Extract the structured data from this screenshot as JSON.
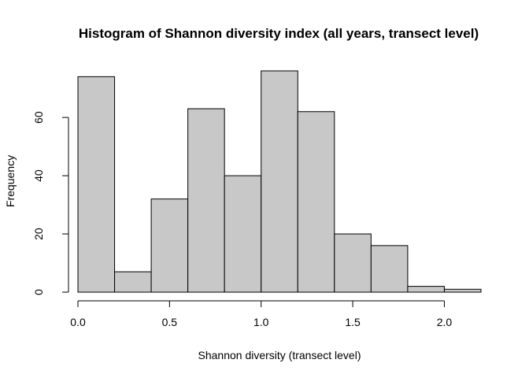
{
  "chart_data": {
    "type": "bar",
    "title": "Histogram of Shannon diversity index (all years, transect level)",
    "xlabel": "Shannon diversity (transect level)",
    "ylabel": "Frequency",
    "bins": [
      {
        "start": 0.0,
        "end": 0.2,
        "count": 74
      },
      {
        "start": 0.2,
        "end": 0.4,
        "count": 7
      },
      {
        "start": 0.4,
        "end": 0.6,
        "count": 32
      },
      {
        "start": 0.6,
        "end": 0.8,
        "count": 63
      },
      {
        "start": 0.8,
        "end": 1.0,
        "count": 40
      },
      {
        "start": 1.0,
        "end": 1.2,
        "count": 76
      },
      {
        "start": 1.2,
        "end": 1.4,
        "count": 62
      },
      {
        "start": 1.4,
        "end": 1.6,
        "count": 20
      },
      {
        "start": 1.6,
        "end": 1.8,
        "count": 16
      },
      {
        "start": 1.8,
        "end": 2.0,
        "count": 2
      },
      {
        "start": 2.0,
        "end": 2.2,
        "count": 1
      }
    ],
    "xlim": [
      0.0,
      2.2
    ],
    "ylim": [
      0,
      76
    ],
    "x_ticks": [
      0.0,
      0.5,
      1.0,
      1.5,
      2.0
    ],
    "x_tick_labels": [
      "0.0",
      "0.5",
      "1.0",
      "1.5",
      "2.0"
    ],
    "y_ticks": [
      0,
      20,
      40,
      60
    ],
    "y_tick_labels": [
      "0",
      "20",
      "40",
      "60"
    ],
    "bar_color": "#c8c8c8",
    "grid": false
  }
}
